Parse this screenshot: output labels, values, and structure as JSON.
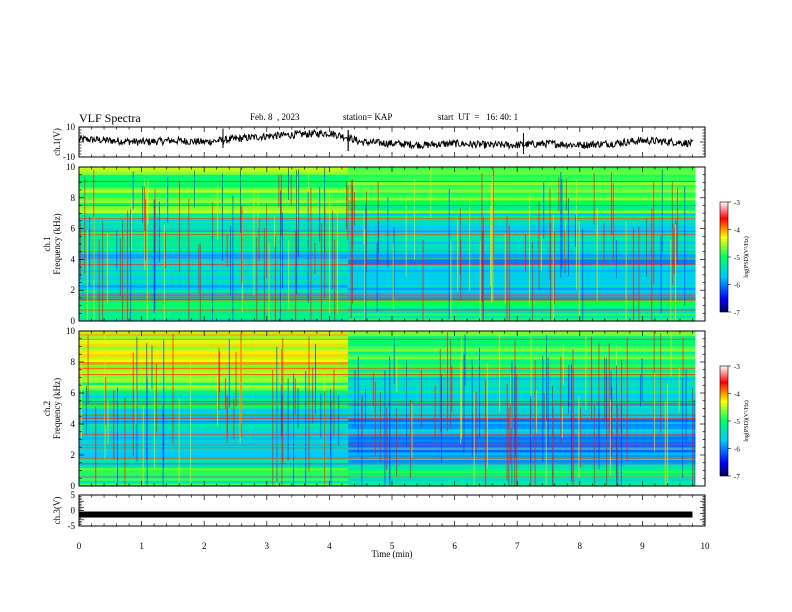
{
  "header": {
    "title": "VLF  Spectra",
    "date": "Feb. 8  , 2023",
    "station": "station= KAP",
    "start_ut": "start  UT  =   16: 40: 1"
  },
  "chart_data": [
    {
      "type": "line",
      "panel": "ch1-waveform",
      "ylabel": "ch.1(V)",
      "ylim": [
        -10,
        10
      ],
      "yticks": [
        "10",
        "-10"
      ],
      "xlim": [
        0,
        10
      ],
      "xlabel": "",
      "series": [
        {
          "x": [
            0,
            0.5,
            1,
            1.5,
            2,
            2.5,
            3,
            3.5,
            4,
            4.3,
            4.5,
            5,
            5.5,
            6,
            6.5,
            7,
            7.5,
            8,
            8.5,
            9,
            9.5,
            9.8
          ],
          "values": [
            2,
            1,
            0,
            1,
            0,
            2,
            4,
            5,
            6,
            3,
            0,
            -1,
            -2,
            -1,
            -2,
            -2,
            -1,
            -2,
            -1,
            1,
            0,
            -1
          ]
        }
      ]
    },
    {
      "type": "heatmap",
      "panel": "ch1-spectrogram",
      "ylabel": "ch.1\nFrequency (kHz)",
      "ylim": [
        0,
        10
      ],
      "yticks": [
        "0",
        "2",
        "4",
        "6",
        "8",
        "10"
      ],
      "xlim": [
        0,
        10
      ],
      "colorbar": {
        "label": "log(PSD)(V²/Hz)",
        "range": [
          -7,
          -3
        ],
        "ticks": [
          "-3",
          "-4",
          "-5",
          "-6",
          "-7"
        ],
        "colors": [
          "#000080",
          "#0000ff",
          "#00c8ff",
          "#00ff64",
          "#ffff00",
          "#ff0000",
          "#ffffff"
        ]
      }
    },
    {
      "type": "heatmap",
      "panel": "ch2-spectrogram",
      "ylabel": "ch.2\nFrequency (kHz)",
      "ylim": [
        0,
        10
      ],
      "yticks": [
        "0",
        "2",
        "4",
        "6",
        "8",
        "10"
      ],
      "xlim": [
        0,
        10
      ],
      "colorbar": {
        "label": "log(PSD)(V²/Hz)",
        "range": [
          -7,
          -3
        ],
        "ticks": [
          "-3",
          "-4",
          "-5",
          "-6",
          "-7"
        ],
        "colors": [
          "#000080",
          "#0000ff",
          "#00c8ff",
          "#00ff64",
          "#ffff00",
          "#ff0000",
          "#ffffff"
        ]
      }
    },
    {
      "type": "line",
      "panel": "ch3-waveform",
      "ylabel": "ch.3(V)",
      "ylim": [
        -5,
        5
      ],
      "yticks": [
        "5",
        "0",
        "-5"
      ],
      "xlim": [
        0,
        10
      ],
      "xticks": [
        "0",
        "1",
        "2",
        "3",
        "4",
        "5",
        "6",
        "7",
        "8",
        "9",
        "10"
      ],
      "xlabel": "Time  (min)",
      "series": [
        {
          "x": [
            0,
            9.8
          ],
          "values": [
            -1.3,
            -1.3
          ]
        }
      ]
    }
  ]
}
